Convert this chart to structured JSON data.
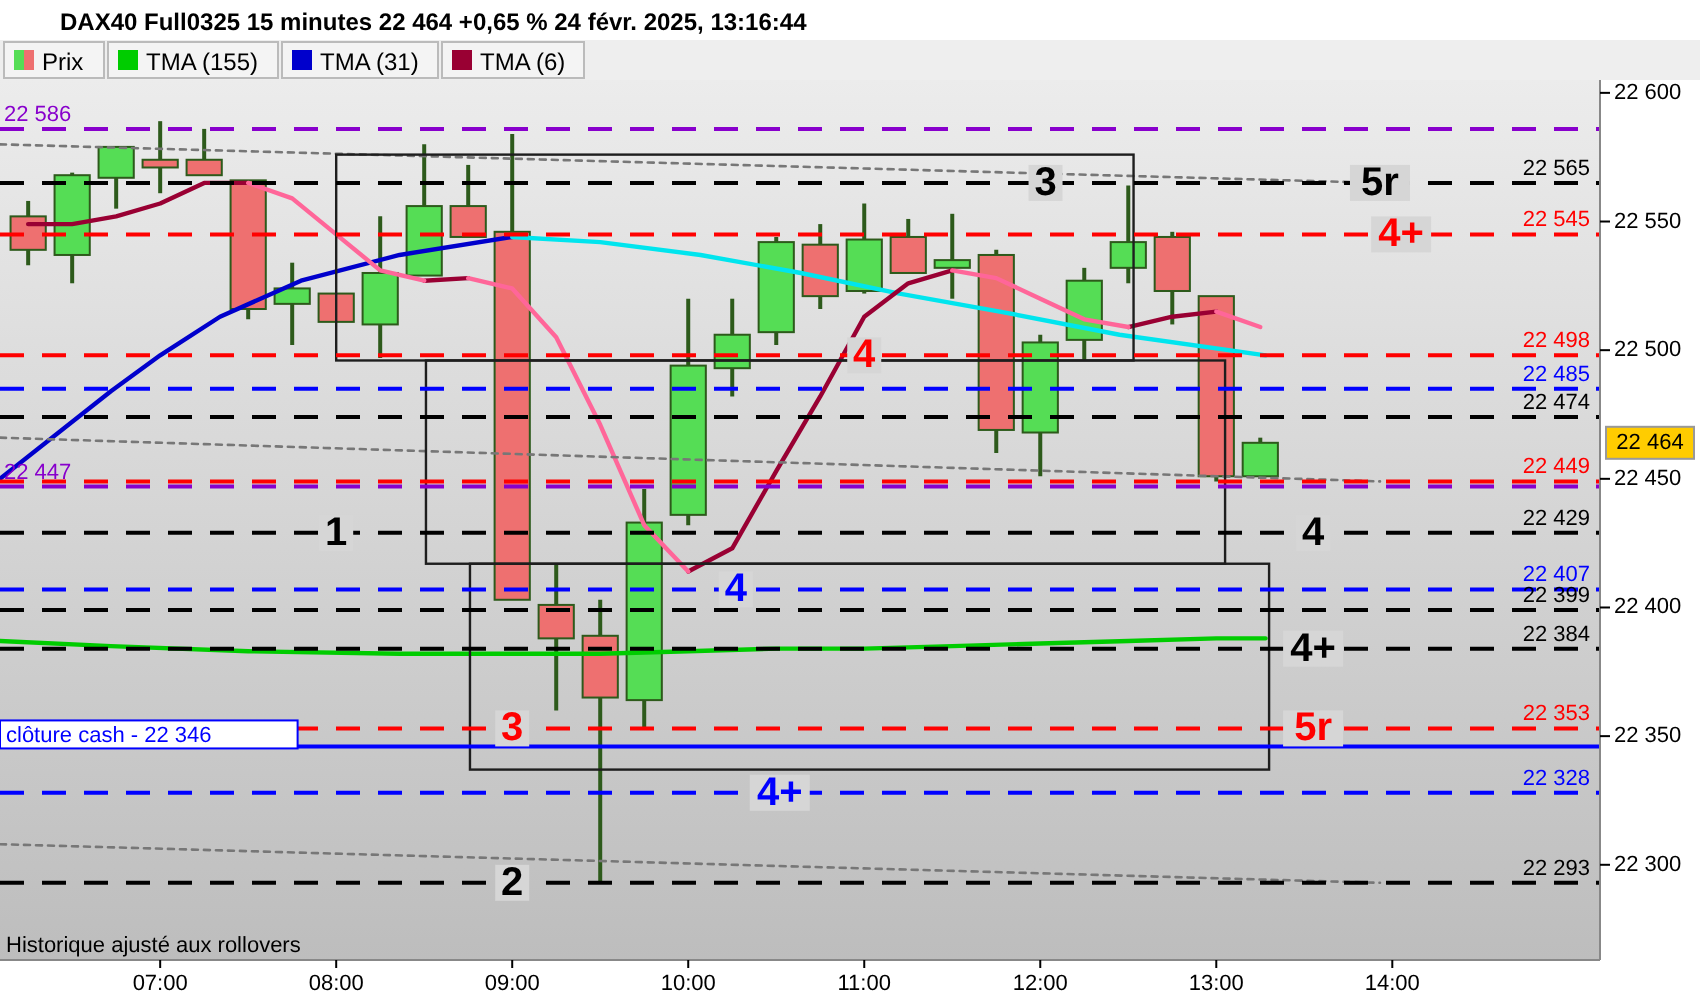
{
  "chart_data": {
    "type": "candlestick",
    "title": "DAX40 Full0325 15 minutes 22 464 +0,65 % 24 févr. 2025, 13:16:44",
    "xlim": [
      6.09,
      15.18
    ],
    "ylim": [
      22263,
      22605
    ],
    "xticks": [
      {
        "value": 7,
        "label": "07:00"
      },
      {
        "value": 8,
        "label": "08:00"
      },
      {
        "value": 9,
        "label": "09:00"
      },
      {
        "value": 10,
        "label": "10:00"
      },
      {
        "value": 11,
        "label": "11:00"
      },
      {
        "value": 12,
        "label": "12:00"
      },
      {
        "value": 13,
        "label": "13:00"
      },
      {
        "value": 14,
        "label": "14:00"
      }
    ],
    "yticks": [
      {
        "value": 22300,
        "label": "22 300"
      },
      {
        "value": 22350,
        "label": "22 350"
      },
      {
        "value": 22400,
        "label": "22 400"
      },
      {
        "value": 22450,
        "label": "22 450"
      },
      {
        "value": 22500,
        "label": "22 500"
      },
      {
        "value": 22550,
        "label": "22 550"
      },
      {
        "value": 22600,
        "label": "22 600"
      }
    ],
    "legend": "top left",
    "grid": false,
    "series": [
      {
        "name": "Prix",
        "colors": [
          "#ee7070",
          "#55dd55",
          "#55dd55",
          "#ee7070",
          "#ee7070",
          "#ee7070",
          "#55dd55",
          "#ee7070",
          "#55dd55",
          "#55dd55",
          "#ee7070",
          "#ee7070",
          "#ee7070",
          "#ee7070",
          "#55dd55",
          "#55dd55",
          "#55dd55",
          "#55dd55",
          "#ee7070",
          "#55dd55",
          "#ee7070",
          "#55dd55",
          "#ee7070",
          "#55dd55",
          "#55dd55",
          "#55dd55",
          "#ee7070",
          "#ee7070",
          "#55dd55"
        ],
        "x": [
          6.25,
          6.5,
          6.75,
          7,
          7.25,
          7.5,
          7.75,
          8,
          8.25,
          8.5,
          8.75,
          9,
          9.25,
          9.5,
          9.75,
          10,
          10.25,
          10.5,
          10.75,
          11,
          11.25,
          11.5,
          11.75,
          12,
          12.25,
          12.5,
          12.75,
          13,
          13.25
        ],
        "ohlc": [
          [
            22552,
            22558,
            22533,
            22539
          ],
          [
            22537,
            22569,
            22526,
            22568
          ],
          [
            22567,
            22579,
            22555,
            22579
          ],
          [
            22574,
            22589,
            22561,
            22571
          ],
          [
            22574,
            22586,
            22568,
            22568
          ],
          [
            22566,
            22566,
            22512,
            22516
          ],
          [
            22518,
            22534,
            22502,
            22524
          ],
          [
            22522,
            22522,
            22511,
            22511
          ],
          [
            22510,
            22552,
            22497,
            22530
          ],
          [
            22529,
            22580,
            22529,
            22556
          ],
          [
            22556,
            22572,
            22544,
            22544
          ],
          [
            22546,
            22584,
            22403,
            22403
          ],
          [
            22401,
            22417,
            22360,
            22388
          ],
          [
            22389,
            22403,
            22293,
            22365
          ],
          [
            22364,
            22446,
            22353,
            22433
          ],
          [
            22436,
            22520,
            22432,
            22494
          ],
          [
            22493,
            22520,
            22482,
            22506
          ],
          [
            22507,
            22544,
            22502,
            22542
          ],
          [
            22541,
            22549,
            22516,
            22521
          ],
          [
            22523,
            22557,
            22522,
            22543
          ],
          [
            22544,
            22551,
            22530,
            22530
          ],
          [
            22532,
            22553,
            22520,
            22535
          ],
          [
            22537,
            22539,
            22460,
            22469
          ],
          [
            22468,
            22506,
            22451,
            22503
          ],
          [
            22504,
            22532,
            22496,
            22527
          ],
          [
            22532,
            22564,
            22526,
            22542
          ],
          [
            22544,
            22546,
            22510,
            22523
          ],
          [
            22521,
            22521,
            22449,
            22451
          ],
          [
            22451,
            22466,
            22450,
            22464
          ]
        ]
      },
      {
        "name": "TMA (155)",
        "type": "line",
        "color": "#00cc00",
        "x": [
          6.09,
          6.72,
          7.5,
          8.36,
          9.0,
          9.5,
          10.0,
          10.5,
          11.0,
          11.5,
          12.0,
          12.5,
          13.0,
          13.28
        ],
        "values": [
          22387,
          22385,
          22383,
          22382,
          22382,
          22382,
          22383,
          22384,
          22384,
          22385,
          22386,
          22387,
          22388,
          22388
        ]
      },
      {
        "name": "TMA (31)",
        "type": "line",
        "color": "#0000cc",
        "x": [
          6.09,
          6.72,
          7.0,
          7.34,
          7.8,
          8.36,
          9.0
        ],
        "values": [
          22450,
          22484,
          22498,
          22513,
          22527,
          22537,
          22544
        ]
      },
      {
        "type": "line",
        "color": "#00e5ee",
        "x": [
          9.0,
          9.5,
          10.07,
          10.64,
          11.2,
          11.77,
          12.45,
          13.28
        ],
        "values": [
          22544,
          22542,
          22537,
          22530,
          22522,
          22515,
          22506,
          22498
        ]
      },
      {
        "name": "TMA (6)",
        "type": "line",
        "color": "#990033",
        "x": [
          6.25,
          6.5,
          6.75,
          7,
          7.25,
          7.5
        ],
        "values": [
          22549,
          22549,
          22552,
          22557,
          22565,
          22565
        ]
      },
      {
        "type": "line",
        "color": "#990033",
        "x": [
          8.5,
          8.75
        ],
        "values": [
          22527,
          22528
        ]
      },
      {
        "type": "line",
        "color": "#990033",
        "x": [
          10,
          10.25,
          10.5,
          10.75,
          11,
          11.25,
          11.5
        ],
        "values": [
          22414,
          22423,
          22453,
          22482,
          22513,
          22526,
          22531
        ]
      },
      {
        "type": "line",
        "color": "#990033",
        "x": [
          12.5,
          12.75,
          13
        ],
        "values": [
          22509,
          22513,
          22515
        ]
      },
      {
        "type": "line",
        "color": "#ff6699",
        "x": [
          7.5,
          7.75,
          8,
          8.25,
          8.5
        ],
        "values": [
          22565,
          22559,
          22545,
          22531,
          22527
        ]
      },
      {
        "type": "line",
        "color": "#ff6699",
        "x": [
          8.75,
          9,
          9.25,
          9.5,
          9.75,
          10
        ],
        "values": [
          22528,
          22524,
          22505,
          22471,
          22432,
          22414
        ]
      },
      {
        "type": "line",
        "color": "#ff6699",
        "x": [
          11.5,
          11.75,
          12,
          12.25,
          12.5
        ],
        "values": [
          22531,
          22528,
          22520,
          22512,
          22509
        ]
      },
      {
        "type": "line",
        "color": "#ff6699",
        "x": [
          13,
          13.25
        ],
        "values": [
          22515,
          22509
        ]
      },
      {
        "type": "line",
        "color": "#777777",
        "line_style": "dotted",
        "x": [
          6.09,
          13.93
        ],
        "values": [
          22580,
          22565
        ]
      },
      {
        "type": "line",
        "color": "#777777",
        "line_style": "dotted",
        "x": [
          6.09,
          13.93
        ],
        "values": [
          22466,
          22449
        ]
      },
      {
        "type": "line",
        "color": "#777777",
        "line_style": "dotted",
        "x": [
          6.09,
          13.93
        ],
        "values": [
          22308,
          22293
        ]
      }
    ],
    "ref_lines": [
      {
        "axis": "y",
        "value": 22586,
        "label": "22 586",
        "color": "#8800cc",
        "line_style": "dashed"
      },
      {
        "axis": "y",
        "value": 22565,
        "label": "22 565",
        "color": "#000000",
        "line_style": "dashed"
      },
      {
        "axis": "y",
        "value": 22545,
        "label": "22 545",
        "color": "#ff0000",
        "line_style": "dashed"
      },
      {
        "axis": "y",
        "value": 22498,
        "label": "22 498",
        "color": "#ff0000",
        "line_style": "dashed"
      },
      {
        "axis": "y",
        "value": 22485,
        "label": "22 485",
        "color": "#0000ff",
        "line_style": "dashed"
      },
      {
        "axis": "y",
        "value": 22474,
        "label": "22 474",
        "color": "#000000",
        "line_style": "dashed"
      },
      {
        "axis": "y",
        "value": 22449,
        "label": "22 449",
        "color": "#ff0000",
        "line_style": "dashed"
      },
      {
        "axis": "y",
        "value": 22447,
        "label": "22 447",
        "color": "#8800cc",
        "line_style": "dashed"
      },
      {
        "axis": "y",
        "value": 22429,
        "label": "22 429",
        "color": "#000000",
        "line_style": "dashed"
      },
      {
        "axis": "y",
        "value": 22407,
        "label": "22 407",
        "color": "#0000ff",
        "line_style": "dashed"
      },
      {
        "axis": "y",
        "value": 22399,
        "label": "22 399",
        "color": "#000000",
        "line_style": "dashed"
      },
      {
        "axis": "y",
        "value": 22384,
        "label": "22 384",
        "color": "#000000",
        "line_style": "dashed"
      },
      {
        "axis": "y",
        "value": 22353,
        "label": "22 353",
        "color": "#ff0000",
        "line_style": "dashed"
      },
      {
        "axis": "y",
        "value": 22346,
        "label": "clôture cash -  22 346",
        "color": "#0000ff",
        "line_style": "solid"
      },
      {
        "axis": "y",
        "value": 22328,
        "label": "22 328",
        "color": "#0000ff",
        "line_style": "dashed"
      },
      {
        "axis": "y",
        "value": 22293,
        "label": "22 293",
        "color": "#000000",
        "line_style": "dashed"
      }
    ],
    "annotations": [
      {
        "text": "1",
        "x": 8.0,
        "y": 22429
      },
      {
        "text": "2",
        "x": 9.0,
        "y": 22293
      },
      {
        "text": "3",
        "x": 12.03,
        "y": 22565
      },
      {
        "text": "4",
        "x": 11.0,
        "y": 22498
      },
      {
        "text": "4",
        "x": 10.27,
        "y": 22407
      },
      {
        "text": "3",
        "x": 9.0,
        "y": 22353
      },
      {
        "text": "4+",
        "x": 10.52,
        "y": 22328
      },
      {
        "text": "5r",
        "x": 13.93,
        "y": 22565
      },
      {
        "text": "4+",
        "x": 14.05,
        "y": 22545
      },
      {
        "text": "4",
        "x": 13.55,
        "y": 22429
      },
      {
        "text": "4+",
        "x": 13.55,
        "y": 22384
      },
      {
        "text": "5r",
        "x": 13.55,
        "y": 22353
      },
      "Historique ajusté aux rollovers",
      "22 464"
    ]
  }
}
